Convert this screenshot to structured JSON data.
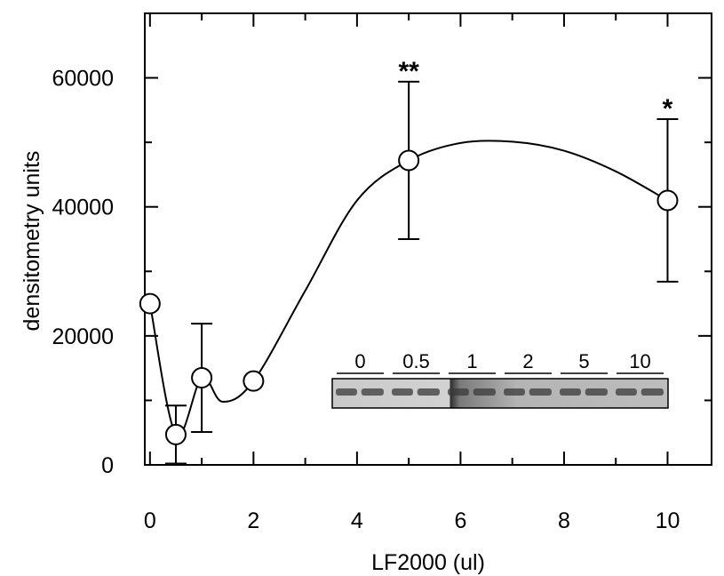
{
  "chart_data": {
    "type": "scatter",
    "xlabel": "LF2000 (ul)",
    "ylabel": "densitometry units",
    "xlim": [
      -0.1,
      10.85
    ],
    "ylim": [
      0,
      70000
    ],
    "x_ticks": [
      0,
      2,
      4,
      6,
      8,
      10
    ],
    "y_ticks": [
      0,
      20000,
      40000,
      60000
    ],
    "grid": false,
    "series": [
      {
        "points": [
          {
            "x": 0,
            "y": 25000,
            "err": null
          },
          {
            "x": 0.5,
            "y": 4700,
            "err": 4500
          },
          {
            "x": 1,
            "y": 13500,
            "err": 8400
          },
          {
            "x": 2,
            "y": 13000,
            "err": null
          },
          {
            "x": 5,
            "y": 47200,
            "err": 12200
          },
          {
            "x": 10,
            "y": 41000,
            "err": 12600
          }
        ],
        "curve": [
          [
            0,
            25000
          ],
          [
            0.5,
            4700
          ],
          [
            1,
            13500
          ],
          [
            1.4,
            9800
          ],
          [
            2,
            13000
          ],
          [
            3,
            27000
          ],
          [
            4,
            41000
          ],
          [
            5,
            47200
          ],
          [
            6,
            49900
          ],
          [
            7,
            50100
          ],
          [
            8,
            48700
          ],
          [
            9,
            45500
          ],
          [
            10,
            41000
          ]
        ]
      }
    ],
    "annotations": [
      {
        "text": "**",
        "x": 5,
        "y": 59400
      },
      {
        "text": "*",
        "x": 10,
        "y": 53600
      }
    ],
    "inset": {
      "type": "western-blot",
      "lane_labels": [
        "0",
        "0.5",
        "1",
        "2",
        "5",
        "10"
      ]
    }
  }
}
